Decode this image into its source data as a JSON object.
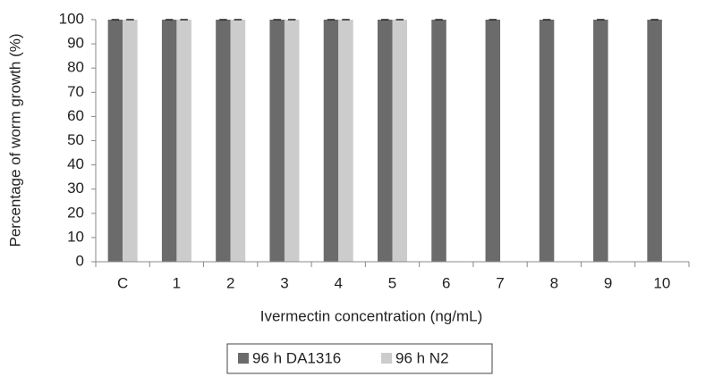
{
  "chart_data": {
    "type": "bar",
    "x_label": "Ivermectin concentration (ng/mL)",
    "y_label": "Percentage of worm growth (%)",
    "categories": [
      "C",
      "1",
      "2",
      "3",
      "4",
      "5",
      "6",
      "7",
      "8",
      "9",
      "10"
    ],
    "series": [
      {
        "name": "96 h DA1316",
        "color": "#6b6b6b",
        "values": [
          100,
          100,
          100,
          100,
          100,
          100,
          100,
          100,
          100,
          100,
          100
        ]
      },
      {
        "name": "96 h N2",
        "color": "#cccccc",
        "values": [
          100,
          100,
          100,
          100,
          100,
          100,
          0,
          0,
          0,
          0,
          0
        ]
      }
    ],
    "ylim": [
      0,
      100
    ],
    "yticks": [
      0,
      10,
      20,
      30,
      40,
      50,
      60,
      70,
      80,
      90,
      100
    ],
    "grid": false,
    "legend": "bottom"
  }
}
